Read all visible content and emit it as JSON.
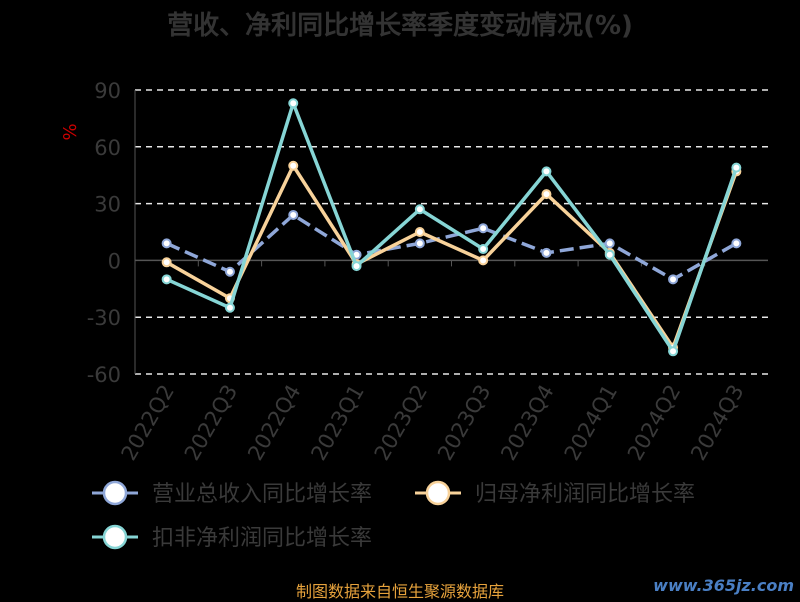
{
  "chart_data": {
    "type": "line",
    "title": "营收、净利同比增长率季度变动情况(%)",
    "ylabel": "%",
    "ylim": [
      -60,
      90
    ],
    "yticks": [
      -60,
      -30,
      0,
      30,
      60,
      90
    ],
    "categories": [
      "2022Q2",
      "2022Q3",
      "2022Q4",
      "2023Q1",
      "2023Q2",
      "2023Q3",
      "2023Q4",
      "2024Q1",
      "2024Q2",
      "2024Q3"
    ],
    "series": [
      {
        "name": "营业总收入同比增长率",
        "color": "#8fa7d8",
        "dashed": true,
        "values": [
          9,
          -6,
          24,
          3,
          9,
          17,
          4,
          9,
          -10,
          9
        ]
      },
      {
        "name": "归母净利润同比增长率",
        "color": "#f8d29a",
        "dashed": false,
        "values": [
          -1,
          -20,
          50,
          -2,
          15,
          0,
          35,
          4,
          -46,
          47
        ]
      },
      {
        "name": "扣非净利润同比增长率",
        "color": "#86d5d5",
        "dashed": false,
        "values": [
          -10,
          -25,
          83,
          -3,
          27,
          6,
          47,
          3,
          -48,
          49
        ]
      }
    ],
    "grid": true,
    "legend_position": "bottom"
  },
  "footer": {
    "source": "制图数据来自恒生聚源数据库",
    "watermark": "www.365jz.com"
  }
}
